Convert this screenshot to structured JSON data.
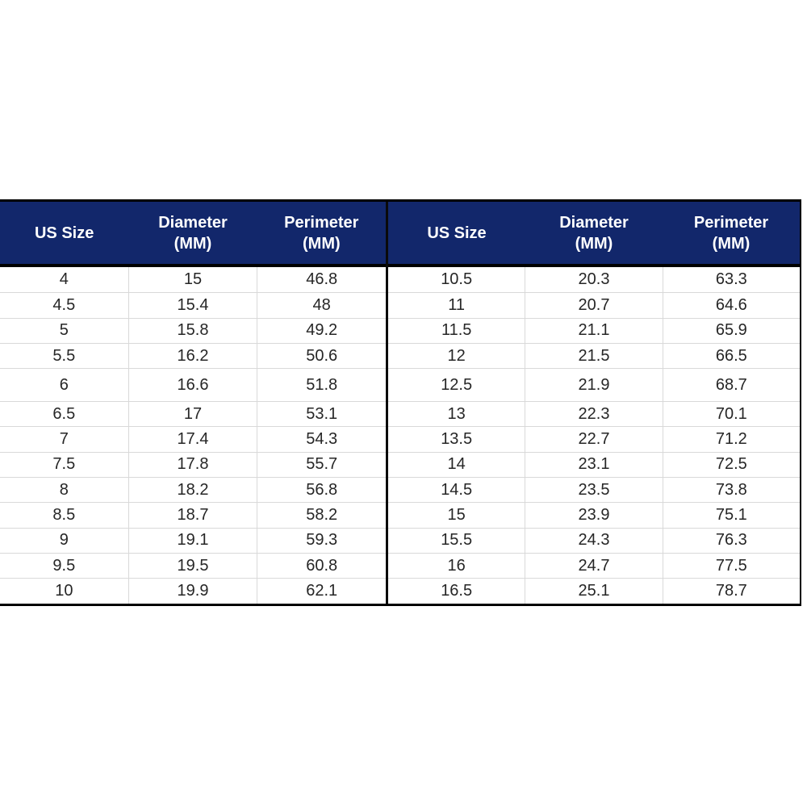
{
  "colors": {
    "header_bg": "#12276B",
    "header_text": "#ffffff",
    "body_text": "#262626",
    "gridline": "#d9d9d9",
    "outer_border": "#000000",
    "page_bg": "#ffffff"
  },
  "table": {
    "header": {
      "us_size": "US Size",
      "diameter_top": "Diameter",
      "diameter_bottom": "(MM)",
      "perimeter_top": "Perimeter",
      "perimeter_bottom": "(MM)"
    }
  },
  "chart_data": {
    "type": "table",
    "title": "",
    "columns": [
      "US Size",
      "Diameter (MM)",
      "Perimeter (MM)"
    ],
    "layout": "two side-by-side tables sharing identical headers, split by vertical black divider",
    "left_rows": [
      [
        "4",
        "15",
        "46.8"
      ],
      [
        "4.5",
        "15.4",
        "48"
      ],
      [
        "5",
        "15.8",
        "49.2"
      ],
      [
        "5.5",
        "16.2",
        "50.6"
      ],
      [
        "6",
        "16.6",
        "51.8"
      ],
      [
        "6.5",
        "17",
        "53.1"
      ],
      [
        "7",
        "17.4",
        "54.3"
      ],
      [
        "7.5",
        "17.8",
        "55.7"
      ],
      [
        "8",
        "18.2",
        "56.8"
      ],
      [
        "8.5",
        "18.7",
        "58.2"
      ],
      [
        "9",
        "19.1",
        "59.3"
      ],
      [
        "9.5",
        "19.5",
        "60.8"
      ],
      [
        "10",
        "19.9",
        "62.1"
      ]
    ],
    "right_rows": [
      [
        "10.5",
        "20.3",
        "63.3"
      ],
      [
        "11",
        "20.7",
        "64.6"
      ],
      [
        "11.5",
        "21.1",
        "65.9"
      ],
      [
        "12",
        "21.5",
        "66.5"
      ],
      [
        "12.5",
        "21.9",
        "68.7"
      ],
      [
        "13",
        "22.3",
        "70.1"
      ],
      [
        "13.5",
        "22.7",
        "71.2"
      ],
      [
        "14",
        "23.1",
        "72.5"
      ],
      [
        "14.5",
        "23.5",
        "73.8"
      ],
      [
        "15",
        "23.9",
        "75.1"
      ],
      [
        "15.5",
        "24.3",
        "76.3"
      ],
      [
        "16",
        "24.7",
        "77.5"
      ],
      [
        "16.5",
        "25.1",
        "78.7"
      ]
    ],
    "tall_row_index": 4
  }
}
